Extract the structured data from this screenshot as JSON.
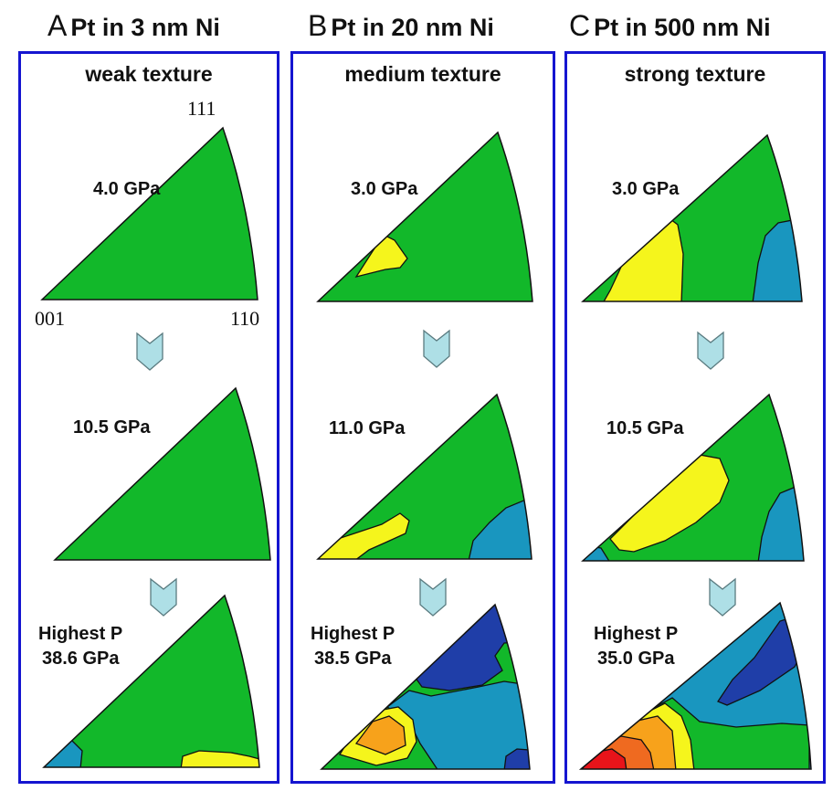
{
  "columns": [
    {
      "letter": "A",
      "title": "Pt in 3 nm Ni",
      "texture": "weak texture",
      "pressures": [
        "4.0 GPa",
        "10.5 GPa",
        "Highest P",
        "38.6 GPa"
      ]
    },
    {
      "letter": "B",
      "title": "Pt in 20 nm Ni",
      "texture": "medium texture",
      "pressures": [
        "3.0 GPa",
        "11.0 GPa",
        "Highest P",
        "38.5 GPa"
      ]
    },
    {
      "letter": "C",
      "title": "Pt in 500 nm Ni",
      "texture": "strong texture",
      "pressures": [
        "3.0 GPa",
        "10.5 GPa",
        "Highest P",
        "35.0 GPa"
      ]
    }
  ],
  "vertex_labels": {
    "v111": "111",
    "v001": "001",
    "v110": "110"
  },
  "colors": {
    "frame": "#1515d0",
    "green": "#12b82a",
    "yellow": "#f5f51c",
    "blue": "#1996bf",
    "darkblue": "#1f3ea8",
    "orange": "#f7a21b",
    "darkorange": "#ef6a20",
    "red": "#e8141a",
    "arrow": "#aedfe6"
  }
}
